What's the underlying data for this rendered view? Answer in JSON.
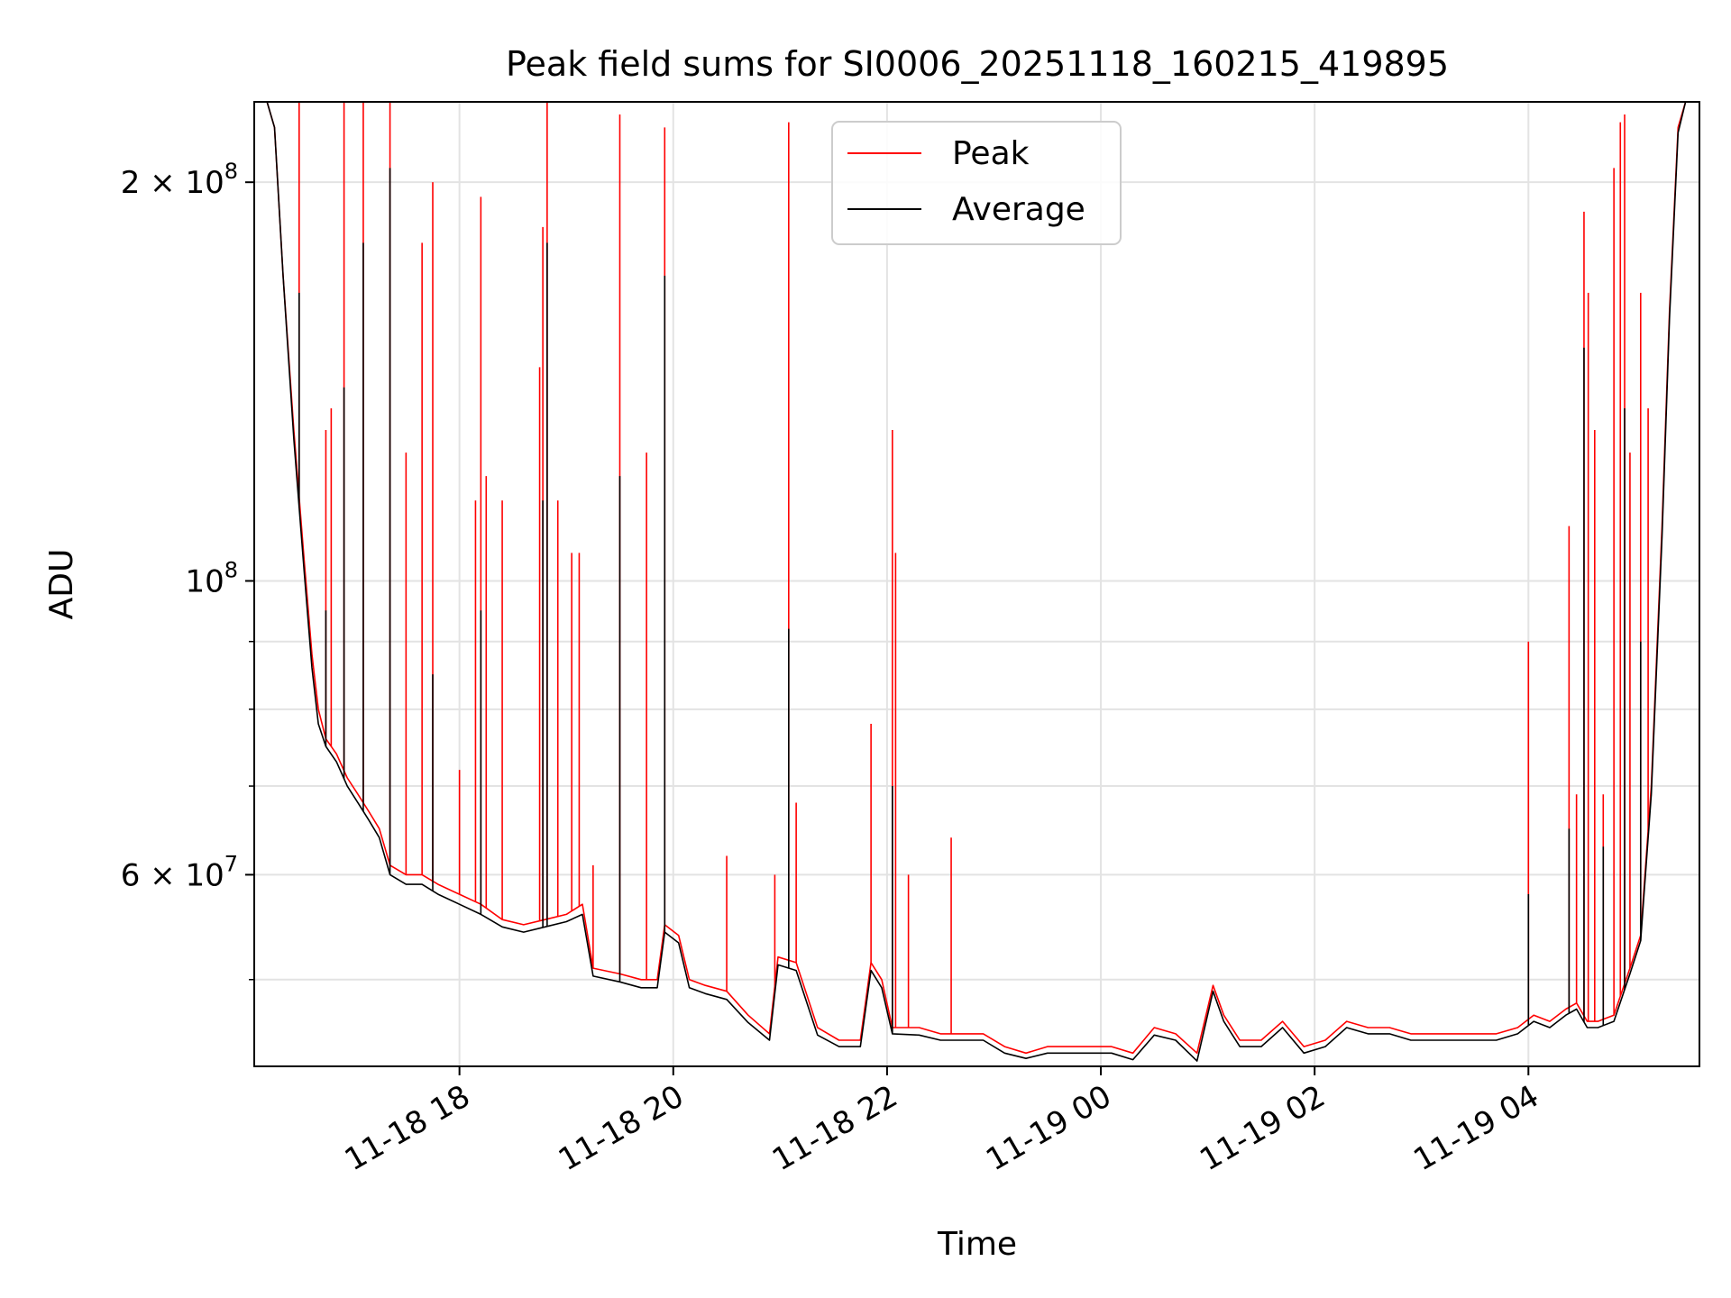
{
  "chart_data": {
    "type": "line",
    "title": "Peak field sums for SI0006_20251118_160215_419895",
    "xlabel": "Time",
    "ylabel": "ADU",
    "yscale": "log",
    "ylim": [
      43000000,
      230000000
    ],
    "xlim_hours": [
      16.08,
      29.6
    ],
    "x_unit": "hours since 11-18 00:00",
    "grid": true,
    "legend": {
      "placement": "upper center",
      "entries": [
        "Peak",
        "Average"
      ]
    },
    "x_ticks": [
      {
        "value": 18,
        "label": "11-18 18"
      },
      {
        "value": 20,
        "label": "11-18 20"
      },
      {
        "value": 22,
        "label": "11-18 22"
      },
      {
        "value": 24,
        "label": "11-19 00"
      },
      {
        "value": 26,
        "label": "11-19 02"
      },
      {
        "value": 28,
        "label": "11-19 04"
      }
    ],
    "y_major_ticks": [
      {
        "value": 60000000,
        "mant": "6",
        "exp": "7"
      },
      {
        "value": 100000000,
        "mant": "",
        "exp": "8"
      },
      {
        "value": 200000000,
        "mant": "2",
        "exp": "8"
      }
    ],
    "y_minor_ticks": [
      50000000,
      70000000,
      80000000,
      90000000,
      300000000
    ],
    "series": [
      {
        "name": "Peak",
        "color": "#ff0000",
        "points": [
          [
            16.08,
            230000000
          ],
          [
            16.2,
            230000000
          ],
          [
            16.27,
            220000000
          ],
          [
            16.35,
            170000000
          ],
          [
            16.45,
            130000000
          ],
          [
            16.55,
            103000000
          ],
          [
            16.62,
            88000000
          ],
          [
            16.68,
            80000000
          ],
          [
            16.75,
            76000000
          ],
          [
            16.85,
            74000000
          ],
          [
            16.95,
            71000000
          ],
          [
            17.05,
            69000000
          ],
          [
            17.15,
            67000000
          ],
          [
            17.25,
            65000000
          ],
          [
            17.35,
            61000000
          ],
          [
            17.5,
            60000000
          ],
          [
            17.65,
            60000000
          ],
          [
            17.8,
            59000000
          ],
          [
            18.0,
            58000000
          ],
          [
            18.2,
            57000000
          ],
          [
            18.4,
            55500000
          ],
          [
            18.6,
            55000000
          ],
          [
            18.8,
            55500000
          ],
          [
            19.0,
            56000000
          ],
          [
            19.15,
            57000000
          ],
          [
            19.25,
            51000000
          ],
          [
            19.5,
            50500000
          ],
          [
            19.7,
            50000000
          ],
          [
            19.85,
            50000000
          ],
          [
            19.92,
            55000000
          ],
          [
            20.05,
            54000000
          ],
          [
            20.15,
            50000000
          ],
          [
            20.3,
            49500000
          ],
          [
            20.5,
            49000000
          ],
          [
            20.7,
            47000000
          ],
          [
            20.9,
            45500000
          ],
          [
            20.98,
            52000000
          ],
          [
            21.15,
            51500000
          ],
          [
            21.35,
            46000000
          ],
          [
            21.55,
            45000000
          ],
          [
            21.75,
            45000000
          ],
          [
            21.85,
            51500000
          ],
          [
            21.95,
            50000000
          ],
          [
            22.05,
            46000000
          ],
          [
            22.3,
            46000000
          ],
          [
            22.5,
            45500000
          ],
          [
            22.7,
            45500000
          ],
          [
            22.9,
            45500000
          ],
          [
            23.1,
            44500000
          ],
          [
            23.3,
            44000000
          ],
          [
            23.5,
            44500000
          ],
          [
            23.7,
            44500000
          ],
          [
            23.9,
            44500000
          ],
          [
            24.1,
            44500000
          ],
          [
            24.3,
            44000000
          ],
          [
            24.5,
            46000000
          ],
          [
            24.7,
            45500000
          ],
          [
            24.9,
            44000000
          ],
          [
            25.05,
            49500000
          ],
          [
            25.15,
            47000000
          ],
          [
            25.3,
            45000000
          ],
          [
            25.5,
            45000000
          ],
          [
            25.7,
            46500000
          ],
          [
            25.9,
            44500000
          ],
          [
            26.1,
            45000000
          ],
          [
            26.3,
            46500000
          ],
          [
            26.5,
            46000000
          ],
          [
            26.7,
            46000000
          ],
          [
            26.9,
            45500000
          ],
          [
            27.1,
            45500000
          ],
          [
            27.3,
            45500000
          ],
          [
            27.5,
            45500000
          ],
          [
            27.7,
            45500000
          ],
          [
            27.9,
            46000000
          ],
          [
            28.05,
            47000000
          ],
          [
            28.2,
            46500000
          ],
          [
            28.35,
            47500000
          ],
          [
            28.45,
            48000000
          ],
          [
            28.55,
            46500000
          ],
          [
            28.65,
            46500000
          ],
          [
            28.8,
            47000000
          ],
          [
            28.95,
            51000000
          ],
          [
            29.05,
            54000000
          ],
          [
            29.15,
            70000000
          ],
          [
            29.25,
            110000000
          ],
          [
            29.32,
            160000000
          ],
          [
            29.4,
            220000000
          ],
          [
            29.47,
            230000000
          ],
          [
            29.6,
            230000000
          ]
        ],
        "spikes": [
          [
            16.5,
            230000000
          ],
          [
            16.75,
            130000000
          ],
          [
            16.8,
            135000000
          ],
          [
            16.92,
            230000000
          ],
          [
            17.1,
            230000000
          ],
          [
            17.35,
            230000000
          ],
          [
            17.5,
            125000000
          ],
          [
            17.65,
            180000000
          ],
          [
            17.75,
            200000000
          ],
          [
            18.0,
            72000000
          ],
          [
            18.15,
            115000000
          ],
          [
            18.2,
            195000000
          ],
          [
            18.25,
            120000000
          ],
          [
            18.4,
            115000000
          ],
          [
            18.75,
            145000000
          ],
          [
            18.78,
            185000000
          ],
          [
            18.82,
            230000000
          ],
          [
            18.92,
            115000000
          ],
          [
            19.05,
            105000000
          ],
          [
            19.12,
            105000000
          ],
          [
            19.25,
            61000000
          ],
          [
            19.5,
            225000000
          ],
          [
            19.75,
            125000000
          ],
          [
            19.92,
            220000000
          ],
          [
            20.5,
            62000000
          ],
          [
            20.95,
            60000000
          ],
          [
            21.08,
            222000000
          ],
          [
            21.15,
            68000000
          ],
          [
            21.85,
            78000000
          ],
          [
            22.05,
            130000000
          ],
          [
            22.08,
            105000000
          ],
          [
            22.2,
            60000000
          ],
          [
            22.6,
            64000000
          ],
          [
            28.0,
            90000000
          ],
          [
            28.38,
            110000000
          ],
          [
            28.45,
            69000000
          ],
          [
            28.52,
            190000000
          ],
          [
            28.56,
            165000000
          ],
          [
            28.62,
            130000000
          ],
          [
            28.7,
            69000000
          ],
          [
            28.8,
            205000000
          ],
          [
            28.86,
            222000000
          ],
          [
            28.9,
            225000000
          ],
          [
            28.95,
            125000000
          ],
          [
            29.05,
            165000000
          ],
          [
            29.12,
            135000000
          ]
        ]
      },
      {
        "name": "Average",
        "color": "#000000",
        "points": [
          [
            16.08,
            230000000
          ],
          [
            16.2,
            230000000
          ],
          [
            16.27,
            220000000
          ],
          [
            16.35,
            170000000
          ],
          [
            16.45,
            128000000
          ],
          [
            16.55,
            101000000
          ],
          [
            16.62,
            86000000
          ],
          [
            16.68,
            78000000
          ],
          [
            16.75,
            75000000
          ],
          [
            16.85,
            73000000
          ],
          [
            16.95,
            70000000
          ],
          [
            17.05,
            68000000
          ],
          [
            17.15,
            66000000
          ],
          [
            17.25,
            64000000
          ],
          [
            17.35,
            60000000
          ],
          [
            17.5,
            59000000
          ],
          [
            17.65,
            59000000
          ],
          [
            17.8,
            58000000
          ],
          [
            18.0,
            57000000
          ],
          [
            18.2,
            56000000
          ],
          [
            18.4,
            54800000
          ],
          [
            18.6,
            54300000
          ],
          [
            18.8,
            54800000
          ],
          [
            19.0,
            55300000
          ],
          [
            19.15,
            56000000
          ],
          [
            19.25,
            50300000
          ],
          [
            19.5,
            49800000
          ],
          [
            19.7,
            49300000
          ],
          [
            19.85,
            49300000
          ],
          [
            19.92,
            54300000
          ],
          [
            20.05,
            53300000
          ],
          [
            20.15,
            49300000
          ],
          [
            20.3,
            48800000
          ],
          [
            20.5,
            48300000
          ],
          [
            20.7,
            46400000
          ],
          [
            20.9,
            45000000
          ],
          [
            20.98,
            51300000
          ],
          [
            21.15,
            50800000
          ],
          [
            21.35,
            45400000
          ],
          [
            21.55,
            44500000
          ],
          [
            21.75,
            44500000
          ],
          [
            21.85,
            50800000
          ],
          [
            21.95,
            49300000
          ],
          [
            22.05,
            45500000
          ],
          [
            22.3,
            45400000
          ],
          [
            22.5,
            45000000
          ],
          [
            22.7,
            45000000
          ],
          [
            22.9,
            45000000
          ],
          [
            23.1,
            44000000
          ],
          [
            23.3,
            43600000
          ],
          [
            23.5,
            44000000
          ],
          [
            23.7,
            44000000
          ],
          [
            23.9,
            44000000
          ],
          [
            24.1,
            44000000
          ],
          [
            24.3,
            43500000
          ],
          [
            24.5,
            45400000
          ],
          [
            24.7,
            45000000
          ],
          [
            24.9,
            43400000
          ],
          [
            25.05,
            49000000
          ],
          [
            25.15,
            46500000
          ],
          [
            25.3,
            44500000
          ],
          [
            25.5,
            44500000
          ],
          [
            25.7,
            46000000
          ],
          [
            25.9,
            44000000
          ],
          [
            26.1,
            44500000
          ],
          [
            26.3,
            46000000
          ],
          [
            26.5,
            45500000
          ],
          [
            26.7,
            45500000
          ],
          [
            26.9,
            45000000
          ],
          [
            27.1,
            45000000
          ],
          [
            27.3,
            45000000
          ],
          [
            27.5,
            45000000
          ],
          [
            27.7,
            45000000
          ],
          [
            27.9,
            45500000
          ],
          [
            28.05,
            46500000
          ],
          [
            28.2,
            46000000
          ],
          [
            28.35,
            47000000
          ],
          [
            28.45,
            47500000
          ],
          [
            28.55,
            46000000
          ],
          [
            28.65,
            46000000
          ],
          [
            28.8,
            46500000
          ],
          [
            28.95,
            50500000
          ],
          [
            29.05,
            53500000
          ],
          [
            29.15,
            69000000
          ],
          [
            29.25,
            108000000
          ],
          [
            29.32,
            158000000
          ],
          [
            29.4,
            218000000
          ],
          [
            29.47,
            230000000
          ],
          [
            29.6,
            230000000
          ]
        ],
        "spikes": [
          [
            16.5,
            165000000
          ],
          [
            16.75,
            95000000
          ],
          [
            16.92,
            140000000
          ],
          [
            17.1,
            180000000
          ],
          [
            17.35,
            205000000
          ],
          [
            17.75,
            85000000
          ],
          [
            18.2,
            95000000
          ],
          [
            18.78,
            115000000
          ],
          [
            18.82,
            180000000
          ],
          [
            19.5,
            120000000
          ],
          [
            19.92,
            170000000
          ],
          [
            21.08,
            92000000
          ],
          [
            22.05,
            70000000
          ],
          [
            28.0,
            58000000
          ],
          [
            28.38,
            65000000
          ],
          [
            28.52,
            150000000
          ],
          [
            28.7,
            63000000
          ],
          [
            28.9,
            135000000
          ],
          [
            29.05,
            90000000
          ]
        ]
      }
    ]
  }
}
